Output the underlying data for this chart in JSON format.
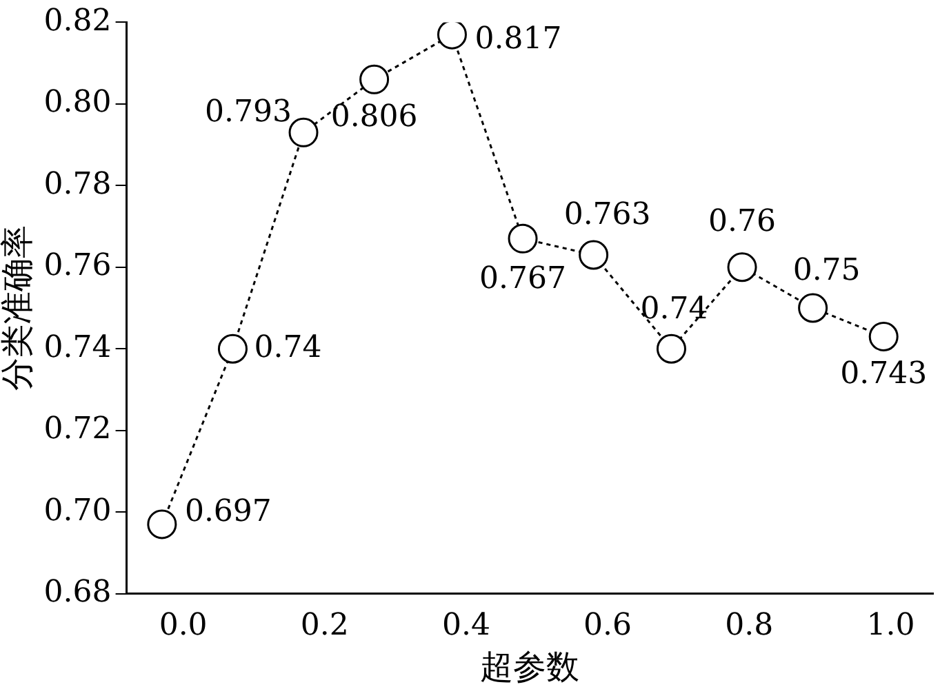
{
  "chart_data": {
    "type": "line",
    "xlabel": "超参数",
    "ylabel": "分类准确率",
    "x": [
      -0.03,
      0.07,
      0.17,
      0.27,
      0.38,
      0.48,
      0.58,
      0.69,
      0.79,
      0.89,
      0.99
    ],
    "values": [
      0.697,
      0.74,
      0.793,
      0.806,
      0.817,
      0.767,
      0.763,
      0.74,
      0.76,
      0.75,
      0.743
    ],
    "color": "#000000",
    "marker": "circle",
    "line_style": "dotted",
    "data_labels": true,
    "grid": false,
    "legend": false,
    "xlim": [
      -0.08,
      1.06
    ],
    "xticks": [
      {
        "value": 0,
        "label": "0.0"
      },
      0.2,
      0.4,
      0.6,
      0.8,
      {
        "value": 1,
        "label": "1.0"
      }
    ],
    "ylim": [
      0.68,
      0.82
    ],
    "yticks": [
      0.68,
      {
        "value": 0.7,
        "label": "0.70"
      },
      0.72,
      0.74,
      0.76,
      0.78,
      {
        "value": 0.8,
        "label": "0.80"
      },
      0.82
    ]
  }
}
